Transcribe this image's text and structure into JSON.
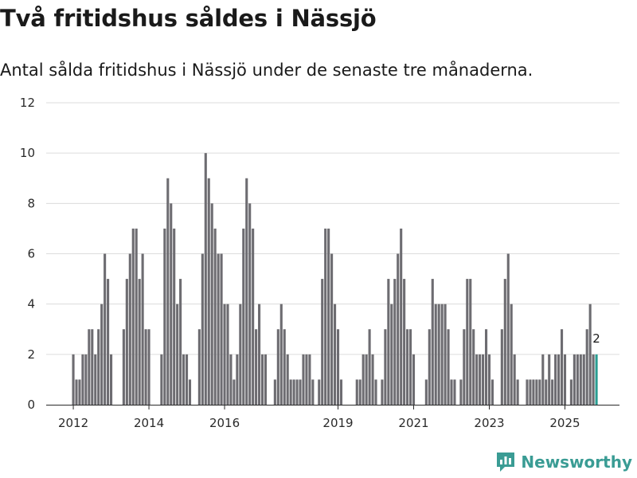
{
  "header": {
    "title": "Två fritidshus såldes i Nässjö",
    "subtitle": "Antal sålda fritidshus i Nässjö under de senaste tre månaderna."
  },
  "brand": {
    "name": "Newsworthy",
    "color": "#3a9c94"
  },
  "chart_data": {
    "type": "bar",
    "title": "Två fritidshus såldes i Nässjö",
    "subtitle": "Antal sålda fritidshus i Nässjö under de senaste tre månaderna.",
    "xlabel": "",
    "ylabel": "",
    "ylim": [
      0,
      12
    ],
    "yticks": [
      0,
      2,
      4,
      6,
      8,
      10,
      12
    ],
    "xticks": [
      {
        "label": "2012",
        "index": 0
      },
      {
        "label": "2014",
        "index": 24
      },
      {
        "label": "2016",
        "index": 48
      },
      {
        "label": "2019",
        "index": 84
      },
      {
        "label": "2021",
        "index": 108
      },
      {
        "label": "2023",
        "index": 132
      },
      {
        "label": "2025",
        "index": 156
      }
    ],
    "grid": true,
    "bar_color": "#6d6c71",
    "highlight_color": "#2a9d92",
    "highlight_last": true,
    "last_value_label": "2",
    "values": [
      2,
      1,
      1,
      2,
      2,
      3,
      3,
      2,
      3,
      4,
      6,
      5,
      2,
      0,
      0,
      0,
      3,
      5,
      6,
      7,
      7,
      5,
      6,
      3,
      3,
      0,
      0,
      0,
      2,
      7,
      9,
      8,
      7,
      4,
      5,
      2,
      2,
      1,
      0,
      0,
      3,
      6,
      10,
      9,
      8,
      7,
      6,
      6,
      4,
      4,
      2,
      1,
      2,
      4,
      7,
      9,
      8,
      7,
      3,
      4,
      2,
      2,
      0,
      0,
      1,
      3,
      4,
      3,
      2,
      1,
      1,
      1,
      1,
      2,
      2,
      2,
      1,
      0,
      1,
      5,
      7,
      7,
      6,
      4,
      3,
      1,
      0,
      0,
      0,
      0,
      1,
      1,
      2,
      2,
      3,
      2,
      1,
      0,
      1,
      3,
      5,
      4,
      5,
      6,
      7,
      5,
      3,
      3,
      2,
      0,
      0,
      0,
      1,
      3,
      5,
      4,
      4,
      4,
      4,
      3,
      1,
      1,
      0,
      1,
      3,
      5,
      5,
      3,
      2,
      2,
      2,
      3,
      2,
      1,
      0,
      0,
      3,
      5,
      6,
      4,
      2,
      1,
      0,
      0,
      1,
      1,
      1,
      1,
      1,
      2,
      1,
      2,
      1,
      2,
      2,
      3,
      2,
      0,
      1,
      2,
      2,
      2,
      2,
      3,
      4,
      2,
      2
    ]
  }
}
